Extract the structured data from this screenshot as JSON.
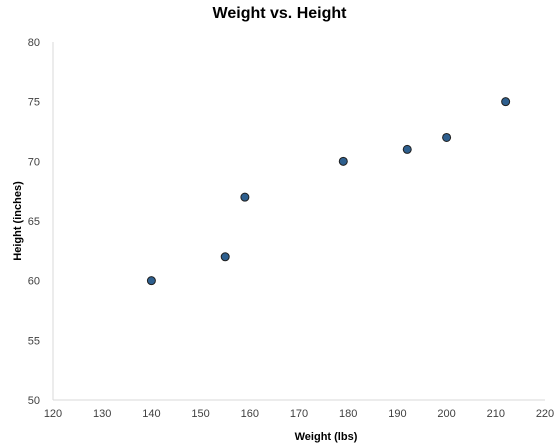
{
  "chart_data": {
    "type": "scatter",
    "title": "Weight vs. Height",
    "xlabel": "Weight (lbs)",
    "ylabel": "Height (inches)",
    "xlim": [
      120,
      220
    ],
    "ylim": [
      50,
      80
    ],
    "xticks": [
      120,
      130,
      140,
      150,
      160,
      170,
      180,
      190,
      200,
      210,
      220
    ],
    "yticks": [
      50,
      55,
      60,
      65,
      70,
      75,
      80
    ],
    "grid": false,
    "legend": "none",
    "marker_color": "#2E5F8E",
    "marker_edge_color": "#1F1F1F",
    "axis_color": "#D9D9D9",
    "points": [
      {
        "x": 140,
        "y": 60
      },
      {
        "x": 155,
        "y": 62
      },
      {
        "x": 159,
        "y": 67
      },
      {
        "x": 179,
        "y": 70
      },
      {
        "x": 192,
        "y": 71
      },
      {
        "x": 200,
        "y": 72
      },
      {
        "x": 212,
        "y": 75
      }
    ]
  }
}
